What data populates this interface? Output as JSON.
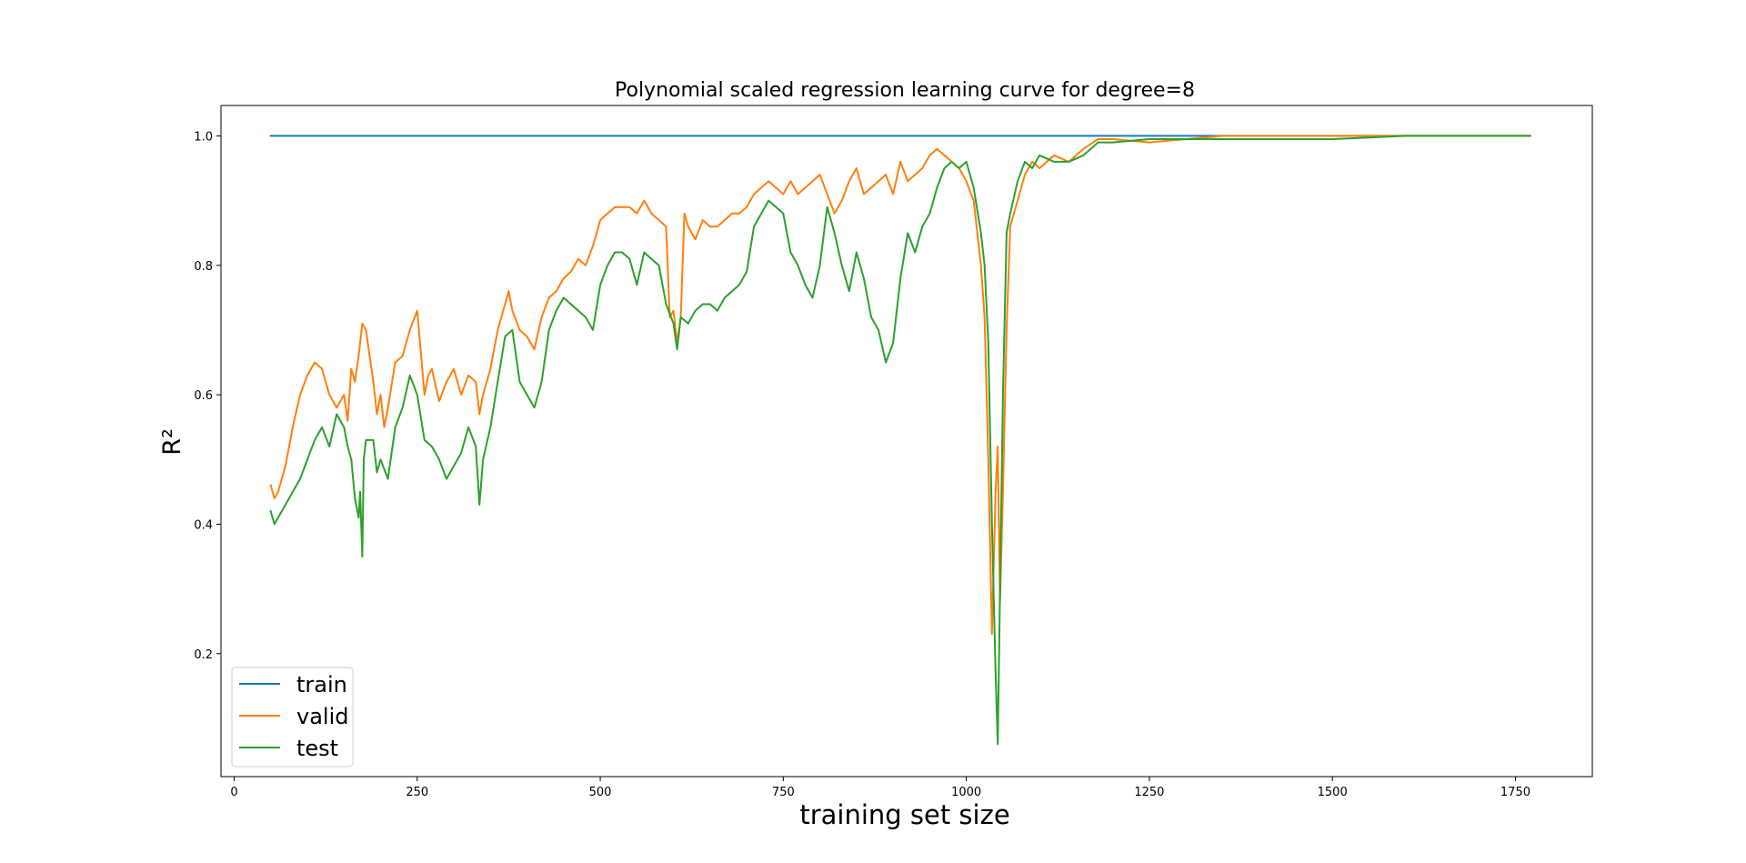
{
  "chart_data": {
    "type": "line",
    "title": "Polynomial scaled regression learning curve for degree=8",
    "xlabel": "training set size",
    "ylabel": "R²",
    "xlim": [
      -18,
      1855
    ],
    "ylim": [
      0.01,
      1.047
    ],
    "xticks": [
      0,
      250,
      500,
      750,
      1000,
      1250,
      1500,
      1750
    ],
    "yticks": [
      0.2,
      0.4,
      0.6,
      0.8,
      1.0
    ],
    "xtick_labels": [
      "0",
      "250",
      "500",
      "750",
      "1000",
      "1250",
      "1500",
      "1750"
    ],
    "ytick_labels": [
      "0.2",
      "0.4",
      "0.6",
      "0.8",
      "1.0"
    ],
    "grid": false,
    "legend_position": "lower-left",
    "series": [
      {
        "name": "train",
        "color": "#1f77b4",
        "x": [
          50,
          1770
        ],
        "y": [
          1.0,
          1.0
        ]
      },
      {
        "name": "valid",
        "color": "#ff7f0e",
        "x": [
          50,
          55,
          60,
          70,
          80,
          90,
          100,
          110,
          120,
          130,
          140,
          150,
          155,
          160,
          165,
          170,
          175,
          180,
          190,
          195,
          200,
          205,
          210,
          220,
          230,
          240,
          250,
          260,
          265,
          270,
          280,
          290,
          300,
          310,
          320,
          330,
          335,
          340,
          350,
          360,
          370,
          375,
          380,
          390,
          400,
          410,
          420,
          430,
          440,
          450,
          460,
          470,
          480,
          490,
          500,
          510,
          520,
          530,
          540,
          550,
          560,
          570,
          580,
          590,
          595,
          600,
          605,
          610,
          615,
          620,
          630,
          640,
          650,
          660,
          670,
          680,
          690,
          700,
          710,
          720,
          730,
          740,
          750,
          760,
          770,
          780,
          790,
          800,
          810,
          820,
          830,
          840,
          850,
          860,
          870,
          880,
          890,
          900,
          910,
          920,
          930,
          940,
          950,
          960,
          970,
          980,
          990,
          1000,
          1010,
          1015,
          1020,
          1025,
          1030,
          1035,
          1040,
          1043,
          1046,
          1050,
          1055,
          1060,
          1070,
          1080,
          1090,
          1100,
          1120,
          1140,
          1160,
          1180,
          1200,
          1250,
          1300,
          1350,
          1400,
          1500,
          1600,
          1700,
          1770
        ],
        "y": [
          0.46,
          0.44,
          0.45,
          0.49,
          0.55,
          0.6,
          0.63,
          0.65,
          0.64,
          0.6,
          0.58,
          0.6,
          0.56,
          0.64,
          0.62,
          0.66,
          0.71,
          0.7,
          0.62,
          0.57,
          0.6,
          0.55,
          0.58,
          0.65,
          0.66,
          0.7,
          0.73,
          0.6,
          0.63,
          0.64,
          0.59,
          0.62,
          0.64,
          0.6,
          0.63,
          0.62,
          0.57,
          0.6,
          0.64,
          0.7,
          0.74,
          0.76,
          0.73,
          0.7,
          0.69,
          0.67,
          0.72,
          0.75,
          0.76,
          0.78,
          0.79,
          0.81,
          0.8,
          0.83,
          0.87,
          0.88,
          0.89,
          0.89,
          0.89,
          0.88,
          0.9,
          0.88,
          0.87,
          0.86,
          0.72,
          0.73,
          0.68,
          0.72,
          0.88,
          0.86,
          0.84,
          0.87,
          0.86,
          0.86,
          0.87,
          0.88,
          0.88,
          0.89,
          0.91,
          0.92,
          0.93,
          0.92,
          0.91,
          0.93,
          0.91,
          0.92,
          0.93,
          0.94,
          0.91,
          0.88,
          0.9,
          0.93,
          0.95,
          0.91,
          0.92,
          0.93,
          0.94,
          0.91,
          0.96,
          0.93,
          0.94,
          0.95,
          0.97,
          0.98,
          0.97,
          0.96,
          0.95,
          0.93,
          0.9,
          0.85,
          0.8,
          0.72,
          0.5,
          0.23,
          0.45,
          0.52,
          0.28,
          0.45,
          0.7,
          0.86,
          0.9,
          0.94,
          0.96,
          0.95,
          0.97,
          0.96,
          0.98,
          0.995,
          0.995,
          0.99,
          0.995,
          1.0,
          1.0,
          1.0,
          1.0,
          1.0,
          1.0
        ]
      },
      {
        "name": "test",
        "color": "#2ca02c",
        "x": [
          50,
          55,
          60,
          70,
          80,
          90,
          100,
          110,
          120,
          130,
          140,
          150,
          155,
          160,
          165,
          170,
          172,
          175,
          177,
          180,
          190,
          195,
          200,
          210,
          220,
          230,
          240,
          250,
          260,
          270,
          280,
          290,
          300,
          310,
          320,
          330,
          335,
          340,
          350,
          360,
          370,
          380,
          390,
          400,
          410,
          420,
          430,
          440,
          450,
          460,
          470,
          480,
          490,
          500,
          510,
          520,
          530,
          540,
          550,
          560,
          570,
          580,
          590,
          600,
          605,
          610,
          620,
          630,
          640,
          650,
          660,
          670,
          680,
          690,
          700,
          710,
          720,
          730,
          740,
          750,
          760,
          770,
          780,
          790,
          800,
          810,
          820,
          830,
          840,
          850,
          860,
          870,
          880,
          890,
          900,
          910,
          920,
          930,
          940,
          950,
          960,
          970,
          980,
          990,
          1000,
          1010,
          1020,
          1025,
          1030,
          1035,
          1040,
          1043,
          1046,
          1050,
          1055,
          1060,
          1070,
          1080,
          1090,
          1100,
          1120,
          1140,
          1160,
          1180,
          1200,
          1250,
          1300,
          1350,
          1400,
          1500,
          1600,
          1700,
          1770
        ],
        "y": [
          0.42,
          0.4,
          0.41,
          0.43,
          0.45,
          0.47,
          0.5,
          0.53,
          0.55,
          0.52,
          0.57,
          0.55,
          0.52,
          0.5,
          0.44,
          0.41,
          0.45,
          0.35,
          0.5,
          0.53,
          0.53,
          0.48,
          0.5,
          0.47,
          0.55,
          0.58,
          0.63,
          0.6,
          0.53,
          0.52,
          0.5,
          0.47,
          0.49,
          0.51,
          0.55,
          0.52,
          0.43,
          0.5,
          0.55,
          0.62,
          0.69,
          0.7,
          0.62,
          0.6,
          0.58,
          0.62,
          0.7,
          0.73,
          0.75,
          0.74,
          0.73,
          0.72,
          0.7,
          0.77,
          0.8,
          0.82,
          0.82,
          0.81,
          0.77,
          0.82,
          0.81,
          0.8,
          0.74,
          0.71,
          0.67,
          0.72,
          0.71,
          0.73,
          0.74,
          0.74,
          0.73,
          0.75,
          0.76,
          0.77,
          0.79,
          0.86,
          0.88,
          0.9,
          0.89,
          0.88,
          0.82,
          0.8,
          0.77,
          0.75,
          0.8,
          0.89,
          0.85,
          0.8,
          0.76,
          0.82,
          0.78,
          0.72,
          0.7,
          0.65,
          0.68,
          0.78,
          0.85,
          0.82,
          0.86,
          0.88,
          0.92,
          0.95,
          0.96,
          0.95,
          0.96,
          0.92,
          0.85,
          0.8,
          0.68,
          0.4,
          0.17,
          0.06,
          0.3,
          0.6,
          0.85,
          0.88,
          0.93,
          0.96,
          0.95,
          0.97,
          0.96,
          0.96,
          0.97,
          0.99,
          0.99,
          0.995,
          0.995,
          0.995,
          0.995,
          0.995,
          1.0,
          1.0,
          1.0
        ]
      }
    ]
  }
}
